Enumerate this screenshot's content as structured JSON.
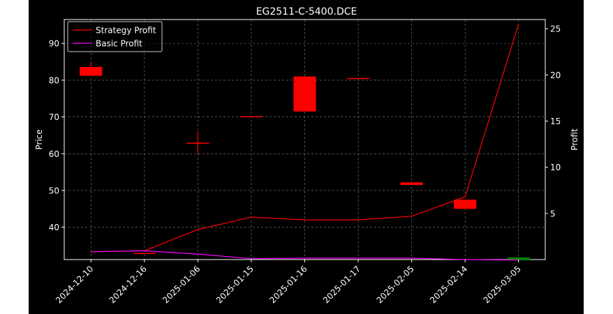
{
  "chart_data": {
    "type": "candlestick",
    "title": "EG2511-C-5400.DCE",
    "categories": [
      "2024-12-10",
      "2024-12-16",
      "2025-01-06",
      "2025-01-15",
      "2025-01-16",
      "2025-01-17",
      "2025-02-05",
      "2025-02-14",
      "2025-03-05"
    ],
    "ohlc": [
      {
        "open": 83.6,
        "high": 85.0,
        "low": 81.2,
        "close": 81.2,
        "direction": "down"
      },
      {
        "open": 33.0,
        "high": 33.0,
        "low": 33.0,
        "close": 33.0,
        "direction": "down"
      },
      {
        "open": 63.0,
        "high": 66.0,
        "low": 60.0,
        "close": 62.9,
        "direction": "down"
      },
      {
        "open": 70.2,
        "high": 70.2,
        "low": 70.0,
        "close": 70.0,
        "direction": "down"
      },
      {
        "open": 81.0,
        "high": 81.0,
        "low": 71.5,
        "close": 71.5,
        "direction": "down"
      },
      {
        "open": 80.6,
        "high": 80.6,
        "low": 80.4,
        "close": 80.4,
        "direction": "down"
      },
      {
        "open": 52.2,
        "high": 52.2,
        "low": 51.5,
        "close": 51.5,
        "direction": "down"
      },
      {
        "open": 47.5,
        "high": 47.5,
        "low": 45.0,
        "close": 45.0,
        "direction": "down"
      },
      {
        "open": 31.0,
        "high": 31.8,
        "low": 31.0,
        "close": 31.8,
        "direction": "up"
      }
    ],
    "series": [
      {
        "name": "Strategy Profit",
        "axis": "right",
        "color": "#ff0000",
        "values": [
          0.85,
          0.95,
          3.25,
          4.6,
          4.3,
          4.3,
          4.7,
          6.8,
          25.5
        ]
      },
      {
        "name": "Basic Profit",
        "axis": "right",
        "color": "#ff00ff",
        "values": [
          0.85,
          0.95,
          0.6,
          0.1,
          0.15,
          0.15,
          0.15,
          0.0,
          -0.05
        ]
      }
    ],
    "ylabel": "Price",
    "y2label": "Profit",
    "ylim": [
      31.2,
      96.5
    ],
    "y2lim": [
      0.0,
      26.0
    ],
    "yticks": [
      40,
      50,
      60,
      70,
      80,
      90
    ],
    "y2ticks": [
      5,
      10,
      15,
      20,
      25
    ],
    "grid": true,
    "legend": "top-left",
    "colors": {
      "background": "#000000",
      "up": "#008000",
      "down": "#ff0000",
      "grid": "#808080",
      "text": "#ffffff"
    }
  }
}
